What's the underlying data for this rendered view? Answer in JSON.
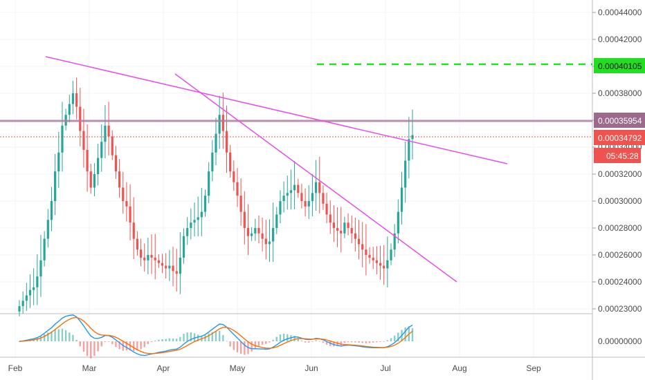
{
  "chart_data": {
    "type": "candlestick",
    "price_axis": {
      "ticks": [
        "0.00044000",
        "0.00042000",
        "0.00040000",
        "0.00038000",
        "0.00036000",
        "0.00034000",
        "0.00032000",
        "0.00030000",
        "0.00028000",
        "0.00026000",
        "0.00024000",
        "0.00023000"
      ],
      "ylim": [
        0.000219,
        0.000454
      ]
    },
    "indicator_axis": {
      "ticks": [
        "0.00000000"
      ]
    },
    "time_axis": {
      "ticks": [
        "Feb",
        "Mar",
        "Apr",
        "May",
        "Jun",
        "Jul",
        "Aug",
        "Sep"
      ]
    },
    "price_labels": {
      "target": {
        "text": "0.00040105",
        "value": 0.00040105,
        "color": "#22dd22"
      },
      "resistance": {
        "text": "0.00035954",
        "value": 0.00035954,
        "color": "#9c6a8a"
      },
      "current": {
        "text": "0.00034792",
        "value": 0.00034792,
        "color": "#ef5350"
      },
      "countdown": {
        "text": "05:45:28"
      }
    },
    "candles_close": [
      0.000222,
      0.000226,
      0.00023,
      0.000234,
      0.000236,
      0.000244,
      0.000256,
      0.000272,
      0.000286,
      0.0003,
      0.000322,
      0.000336,
      0.000356,
      0.000364,
      0.000372,
      0.00038,
      0.00037,
      0.000352,
      0.000338,
      0.000322,
      0.00031,
      0.00032,
      0.000332,
      0.000344,
      0.000356,
      0.000348,
      0.000334,
      0.000322,
      0.00031,
      0.0003,
      0.000296,
      0.000284,
      0.000272,
      0.000264,
      0.000258,
      0.000256,
      0.00026,
      0.000258,
      0.000256,
      0.000254,
      0.000252,
      0.00025,
      0.000252,
      0.000248,
      0.000246,
      0.000258,
      0.000274,
      0.00028,
      0.000284,
      0.000286,
      0.000288,
      0.000292,
      0.000304,
      0.000322,
      0.000336,
      0.00035,
      0.000364,
      0.000352,
      0.000336,
      0.000322,
      0.000314,
      0.000304,
      0.000292,
      0.00028,
      0.000274,
      0.000276,
      0.00028,
      0.000276,
      0.000272,
      0.000268,
      0.00027,
      0.00028,
      0.00029,
      0.0003,
      0.000304,
      0.000306,
      0.000308,
      0.000312,
      0.000306,
      0.0003,
      0.000296,
      0.0003,
      0.000306,
      0.000314,
      0.000306,
      0.000298,
      0.00029,
      0.000284,
      0.00028,
      0.000278,
      0.000276,
      0.000284,
      0.00028,
      0.000276,
      0.000272,
      0.000268,
      0.000264,
      0.00026,
      0.000258,
      0.000256,
      0.000254,
      0.000252,
      0.00025,
      0.000256,
      0.000264,
      0.000276,
      0.000292,
      0.00031,
      0.00033,
      0.000346,
      0.000349
    ],
    "trendlines": [
      {
        "name": "upper-descending",
        "from": [
          "2019-01-18",
          0.000405
        ],
        "to": [
          "2019-08-22",
          0.00033
        ],
        "color": "#e84de8"
      },
      {
        "name": "lower-descending",
        "from": [
          "2019-04-08",
          0.000391
        ],
        "to": [
          "2019-07-26",
          0.000243
        ],
        "color": "#e84de8"
      }
    ],
    "grid": true
  }
}
